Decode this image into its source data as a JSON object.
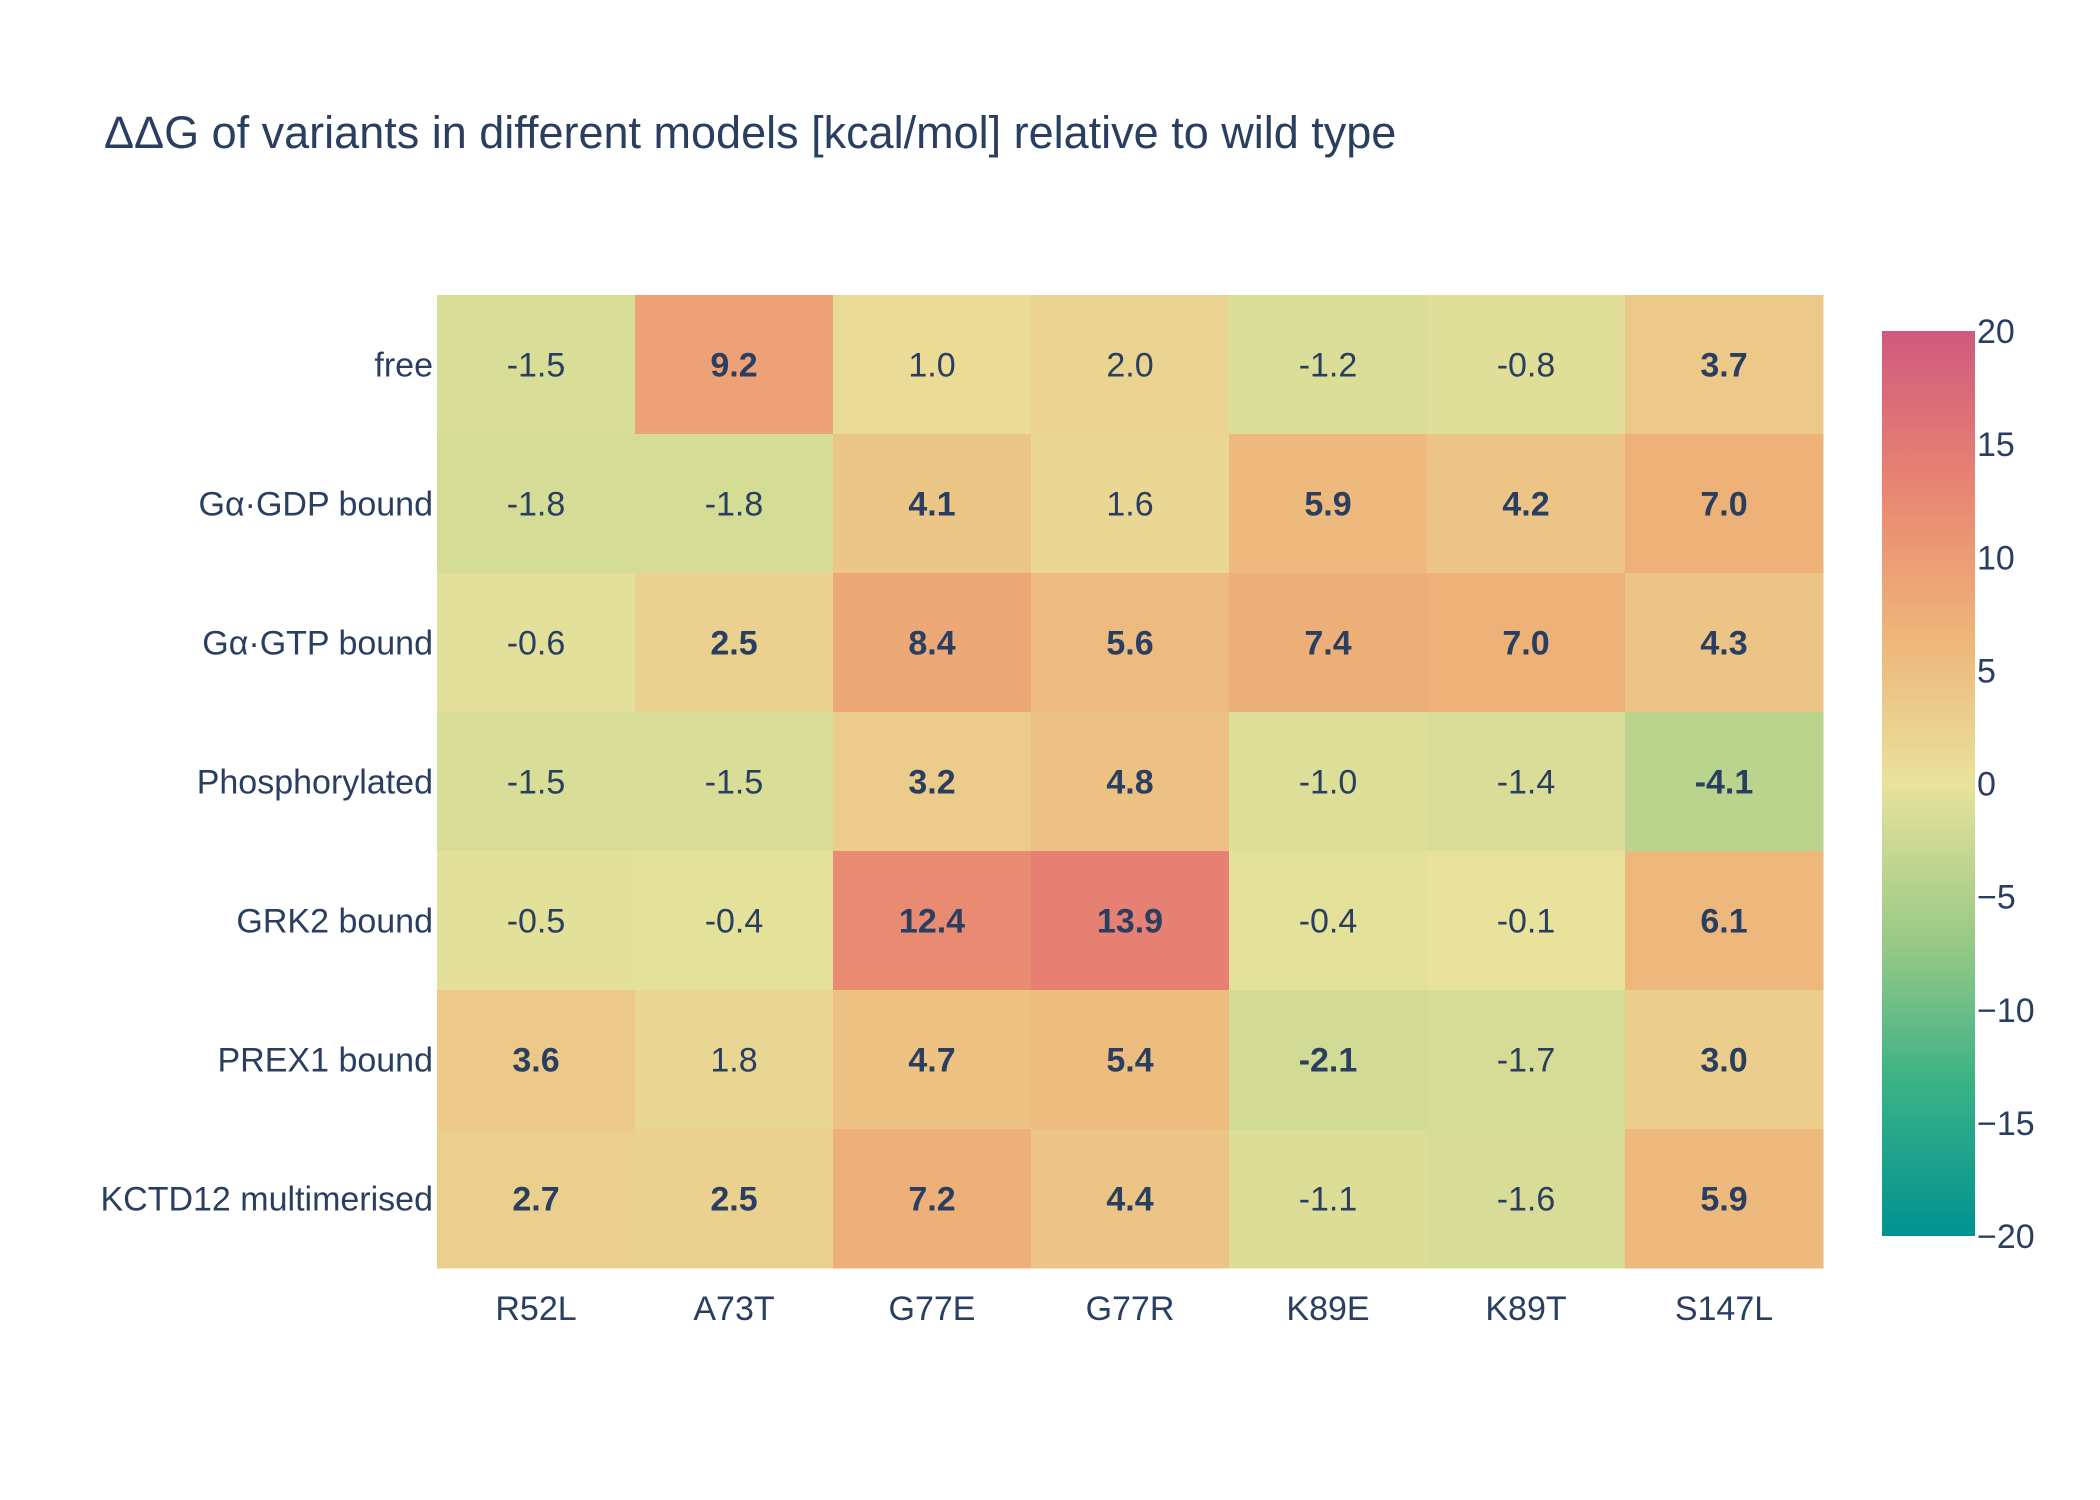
{
  "chart_data": {
    "type": "heatmap",
    "title": "ΔΔG of variants in different models [kcal/mol] relative to wild type",
    "x_categories": [
      "R52L",
      "A73T",
      "G77E",
      "G77R",
      "K89E",
      "K89T",
      "S147L"
    ],
    "y_categories": [
      "free",
      "Gα·GDP bound",
      "Gα·GTP bound",
      "Phosphorylated",
      "GRK2 bound",
      "PREX1 bound",
      "KCTD12 multimerised"
    ],
    "z": [
      [
        -1.5,
        9.2,
        1.0,
        2.0,
        -1.2,
        -0.8,
        3.7
      ],
      [
        -1.8,
        -1.8,
        4.1,
        1.6,
        5.9,
        4.2,
        7.0
      ],
      [
        -0.6,
        2.5,
        8.4,
        5.6,
        7.4,
        7.0,
        4.3
      ],
      [
        -1.5,
        -1.5,
        3.2,
        4.8,
        -1.0,
        -1.4,
        -4.1
      ],
      [
        -0.5,
        -0.4,
        12.4,
        13.9,
        -0.4,
        -0.1,
        6.1
      ],
      [
        3.6,
        1.8,
        4.7,
        5.4,
        -2.1,
        -1.7,
        3.0
      ],
      [
        2.7,
        2.5,
        7.2,
        4.4,
        -1.1,
        -1.6,
        5.9
      ]
    ],
    "cell_labels": [
      [
        "-1.5",
        "9.2",
        "1.0",
        "2.0",
        "-1.2",
        "-0.8",
        "3.7"
      ],
      [
        "-1.8",
        "-1.8",
        "4.1",
        "1.6",
        "5.9",
        "4.2",
        "7.0"
      ],
      [
        "-0.6",
        "2.5",
        "8.4",
        "5.6",
        "7.4",
        "7.0",
        "4.3"
      ],
      [
        "-1.5",
        "-1.5",
        "3.2",
        "4.8",
        "-1.0",
        "-1.4",
        "-4.1"
      ],
      [
        "-0.5",
        "-0.4",
        "12.4",
        "13.9",
        "-0.4",
        "-0.1",
        "6.1"
      ],
      [
        "3.6",
        "1.8",
        "4.7",
        "5.4",
        "-2.1",
        "-1.7",
        "3.0"
      ],
      [
        "2.7",
        "2.5",
        "7.2",
        "4.4",
        "-1.1",
        "-1.6",
        "5.9"
      ]
    ],
    "bold_labels": [
      [
        false,
        true,
        false,
        false,
        false,
        false,
        true
      ],
      [
        false,
        false,
        true,
        false,
        true,
        true,
        true
      ],
      [
        false,
        true,
        true,
        true,
        true,
        true,
        true
      ],
      [
        false,
        false,
        true,
        true,
        false,
        false,
        true
      ],
      [
        false,
        false,
        true,
        true,
        false,
        false,
        true
      ],
      [
        true,
        false,
        true,
        true,
        true,
        false,
        true
      ],
      [
        true,
        true,
        true,
        true,
        false,
        false,
        true
      ]
    ],
    "zmin": -20,
    "zmax": 20,
    "colorbar": {
      "ticks": [
        20,
        15,
        10,
        5,
        0,
        -5,
        -10,
        -15,
        -20
      ],
      "tick_labels": [
        "20",
        "15",
        "10",
        "5",
        "0",
        "−5",
        "−10",
        "−15",
        "−20"
      ]
    },
    "colorscale": [
      [
        0.0,
        "#009b9e"
      ],
      [
        0.16666,
        "#42b7b9"
      ],
      [
        0.33333,
        "#a7d3d4"
      ],
      [
        0.5,
        "#f1f1f1"
      ],
      [
        0.66666,
        "#e4c1d9"
      ],
      [
        0.83333,
        "#d691c1"
      ],
      [
        1.0,
        "#c75dab"
      ]
    ],
    "colorscale_name": "Temps",
    "colorscale_stops": [
      [
        0.0,
        "#009392"
      ],
      [
        0.16666,
        "#39b185"
      ],
      [
        0.33333,
        "#9ccb86"
      ],
      [
        0.5,
        "#e9e29c"
      ],
      [
        0.66666,
        "#eeb479"
      ],
      [
        0.83333,
        "#e88471"
      ],
      [
        1.0,
        "#cf597e"
      ]
    ],
    "grid": false
  }
}
